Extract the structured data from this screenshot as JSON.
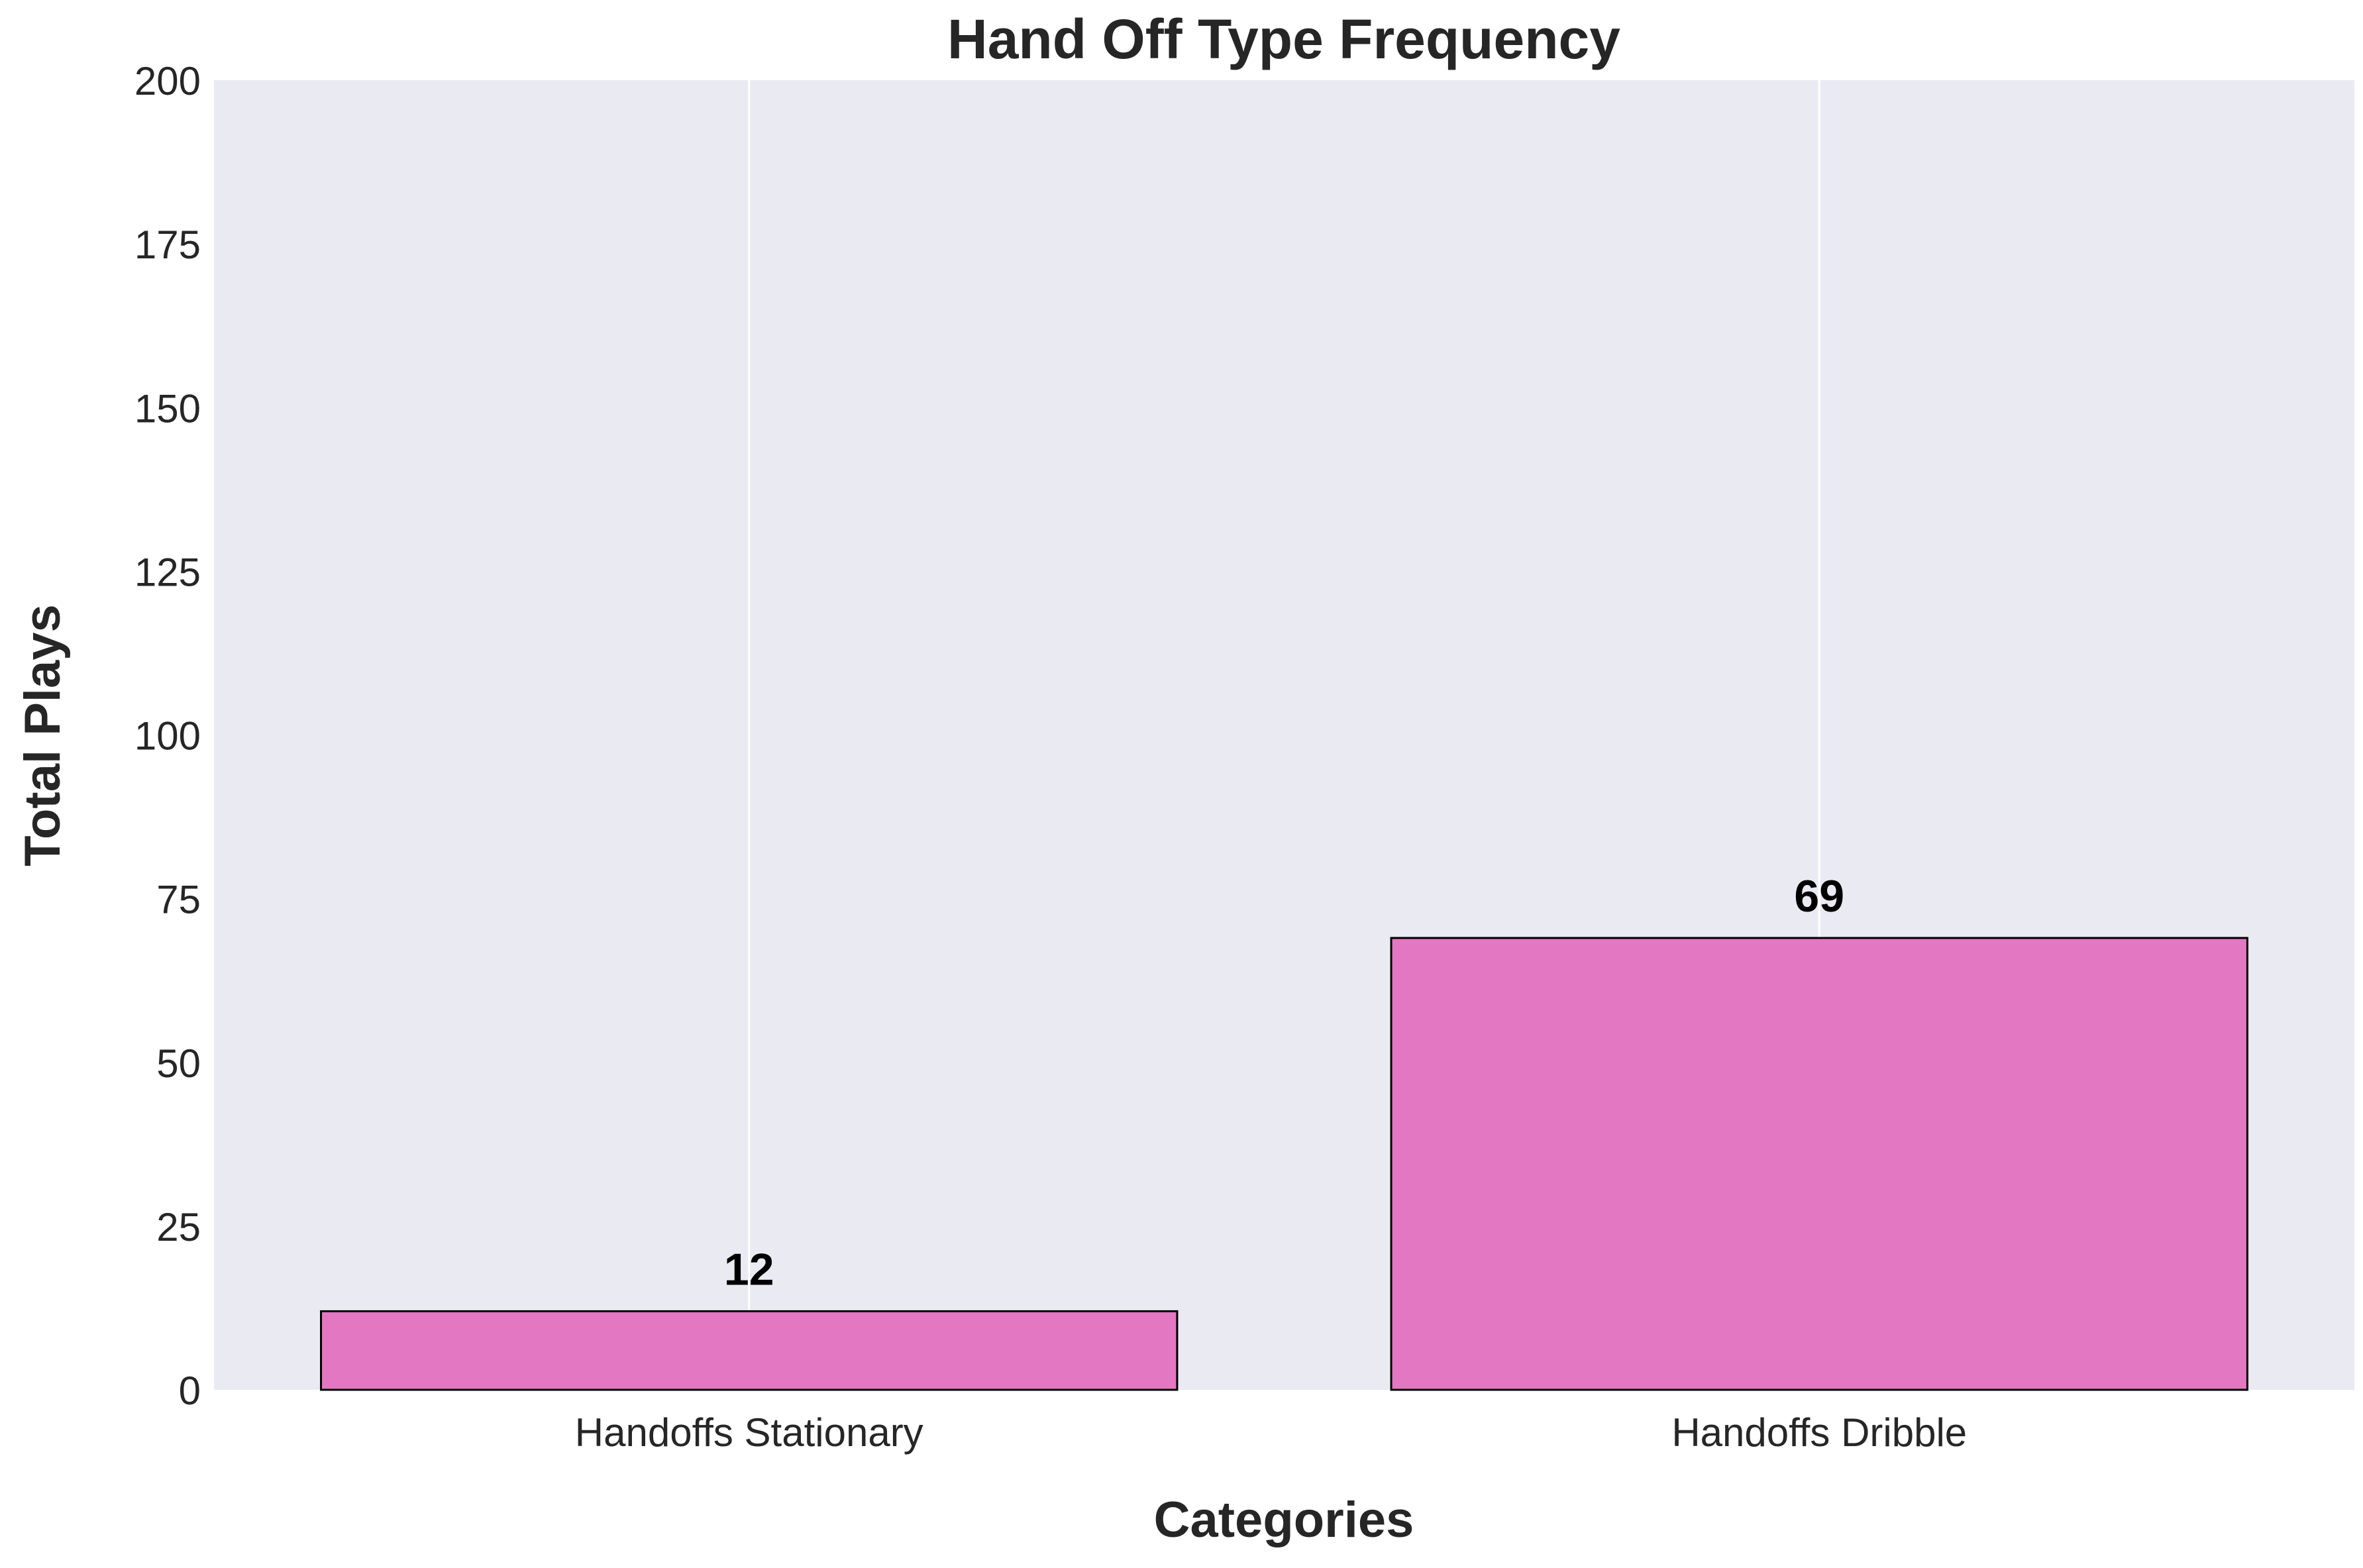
{
  "chart_data": {
    "type": "bar",
    "title": "Hand Off Type Frequency",
    "xlabel": "Categories",
    "ylabel": "Total Plays",
    "categories": [
      "Handoffs Stationary",
      "Handoffs Dribble"
    ],
    "values": [
      12,
      69
    ],
    "data_labels": [
      "12",
      "69"
    ],
    "ylim": [
      0,
      200
    ],
    "yticks": [
      0,
      25,
      50,
      75,
      100,
      125,
      150,
      175,
      200
    ],
    "grid": "vertical",
    "legend": "none"
  },
  "colors": {
    "bar_fill": "#e377c2",
    "bar_edge": "#000000",
    "plot_background": "#eaeaf2",
    "grid": "#ffffff",
    "text": "#262626"
  }
}
